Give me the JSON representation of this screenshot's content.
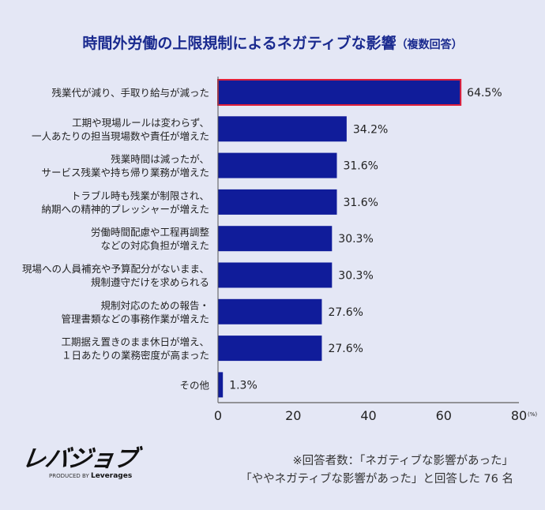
{
  "chart_data": {
    "type": "bar",
    "orientation": "horizontal",
    "title": "時間外労働の上限規制によるネガティブな影響",
    "subtitle": "（複数回答）",
    "categories": [
      [
        "残業代が減り、手取り給与が減った"
      ],
      [
        "工期や現場ルールは変わらず、",
        "一人あたりの担当現場数や責任が増えた"
      ],
      [
        "残業時間は減ったが、",
        "サービス残業や持ち帰り業務が増えた"
      ],
      [
        "トラブル時も残業が制限され、",
        "納期への精神的プレッシャーが増えた"
      ],
      [
        "労働時間配慮や工程再調整",
        "などの対応負担が増えた"
      ],
      [
        "現場への人員補充や予算配分がないまま、",
        "規制遵守だけを求められる"
      ],
      [
        "規制対応のための報告・",
        "管理書類などの事務作業が増えた"
      ],
      [
        "工期据え置きのまま休日が増え、",
        "１日あたりの業務密度が高まった"
      ],
      [
        "その他"
      ]
    ],
    "values": [
      64.5,
      34.2,
      31.6,
      31.6,
      30.3,
      30.3,
      27.6,
      27.6,
      1.3
    ],
    "value_labels": [
      "64.5%",
      "34.2%",
      "31.6%",
      "31.6%",
      "30.3%",
      "30.3%",
      "27.6%",
      "27.6%",
      "1.3%"
    ],
    "xlim": [
      0,
      80
    ],
    "xticks": [
      "0",
      "20",
      "40",
      "60",
      "80"
    ],
    "xunit": "(%)",
    "grid": false,
    "highlight_index": 0,
    "colors": {
      "bar": "#101c9a",
      "highlight_border": "#e0203a",
      "title": "#1a2a8f",
      "background": "#e4e7f5"
    }
  },
  "logo": {
    "mark": "レバジョブ",
    "produced_by": "PRODUCED BY",
    "brand": "Leverages"
  },
  "note": {
    "line1": "※回答者数：「ネガティブな影響があった」",
    "line2": "「ややネガティブな影響があった」と回答した 76 名"
  }
}
